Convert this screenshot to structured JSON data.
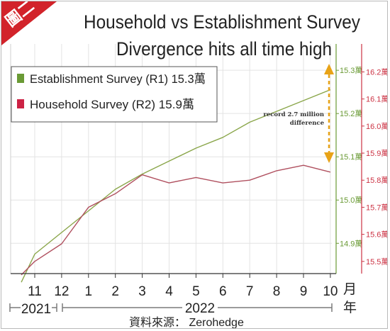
{
  "badge": {
    "label": "圖二",
    "color": "#d2232a"
  },
  "chart_data": {
    "type": "line",
    "title": "Household vs Establishment Survey",
    "subtitle": "Divergence hits all time high",
    "categories": [
      "11",
      "12",
      "1",
      "2",
      "3",
      "4",
      "5",
      "6",
      "7",
      "8",
      "9",
      "10"
    ],
    "month_unit": "月",
    "year_unit": "年",
    "years": [
      {
        "label": "2021"
      },
      {
        "label": "2022"
      }
    ],
    "series": [
      {
        "name": "Establishment Survey (R1) 15.3萬",
        "axis": "left",
        "color": "#8aa64a",
        "x": [
          10.5,
          11,
          12,
          13,
          14,
          15,
          16,
          17,
          18,
          19,
          20,
          21,
          22
        ],
        "values": [
          14.81,
          14.875,
          14.925,
          14.975,
          15.025,
          15.06,
          15.09,
          15.12,
          15.145,
          15.18,
          15.205,
          15.23,
          15.255
        ]
      },
      {
        "name": "Household Survey (R2) 15.9萬",
        "axis": "right",
        "color": "#b0505f",
        "x": [
          10.5,
          11,
          12,
          13,
          14,
          15,
          16,
          17,
          18,
          19,
          20,
          21,
          22
        ],
        "values": [
          15.45,
          15.5,
          15.565,
          15.7,
          15.75,
          15.82,
          15.79,
          15.81,
          15.79,
          15.8,
          15.835,
          15.855,
          15.83
        ]
      }
    ],
    "left_axis": {
      "ticks": [
        "14.9萬",
        "15.0萬",
        "15.1萬",
        "15.2萬",
        "15.3萬"
      ],
      "values": [
        14.9,
        15.0,
        15.1,
        15.2,
        15.3
      ],
      "range": [
        14.83,
        15.315
      ],
      "color": "#6a9a35"
    },
    "right_axis": {
      "ticks": [
        "15.5萬",
        "15.6萬",
        "15.7萬",
        "15.8萬",
        "15.9萬",
        "16.0萬",
        "16.1萬",
        "16.2萬"
      ],
      "values": [
        15.5,
        15.6,
        15.7,
        15.8,
        15.9,
        16.0,
        16.1,
        16.2
      ],
      "range": [
        15.455,
        16.23
      ],
      "color": "#cc3344"
    },
    "x_range": [
      10.5,
      22.15
    ],
    "annotation": {
      "text_lines": [
        "record 2.7 million",
        "difference"
      ],
      "color": "#e8a317"
    },
    "grid": true,
    "legend_position": "top-left"
  },
  "source_text": "資料來源： Zerohedge"
}
